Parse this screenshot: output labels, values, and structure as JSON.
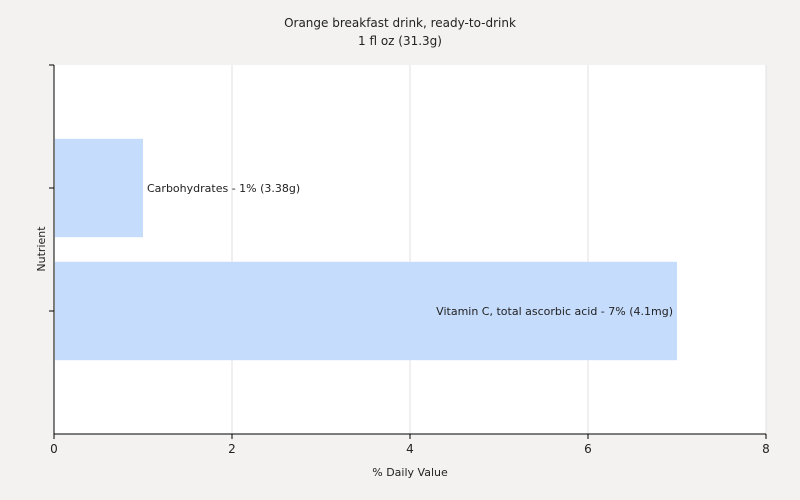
{
  "chart_data": {
    "type": "bar",
    "orientation": "horizontal",
    "title": "Orange breakfast drink, ready-to-drink",
    "subtitle": "1 fl oz (31.3g)",
    "xlabel": "% Daily Value",
    "ylabel": "Nutrient",
    "xlim": [
      0,
      8
    ],
    "xticks": [
      0,
      2,
      4,
      6,
      8
    ],
    "grid": true,
    "categories": [
      "Carbohydrates",
      "Vitamin C, total ascorbic acid"
    ],
    "values": [
      1,
      7
    ],
    "bar_labels": [
      "Carbohydrates - 1% (3.38g)",
      "Vitamin C, total ascorbic acid - 7% (4.1mg)"
    ],
    "colors": {
      "bar": "#c6dcfc",
      "plot_background": "#ffffff",
      "grid": "#e2e2e2",
      "axis": "#000000"
    }
  }
}
